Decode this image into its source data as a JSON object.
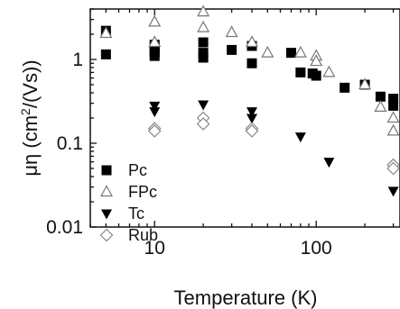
{
  "chart_data": {
    "type": "scatter",
    "title": "",
    "xlabel": "Temperature (K)",
    "ylabel": "μη (cm²/(Vs))",
    "ylabel_parts": {
      "prefix": "μη (cm",
      "exponent": "2",
      "suffix": "/(Vs))"
    },
    "x_scale": "log",
    "y_scale": "log",
    "xlim": [
      4,
      330
    ],
    "ylim": [
      0.01,
      4
    ],
    "x_ticks": [
      10,
      100
    ],
    "x_tick_labels": [
      "10",
      "100"
    ],
    "y_ticks": [
      0.01,
      0.1,
      1
    ],
    "y_tick_labels": [
      "0.01",
      "0.1",
      "1"
    ],
    "grid": false,
    "legend_position": "bottom-left",
    "series": [
      {
        "name": "Pc",
        "marker": "filled-square",
        "color": "#000000",
        "points": [
          {
            "x": 5,
            "y": 2.2
          },
          {
            "x": 5,
            "y": 1.15
          },
          {
            "x": 10,
            "y": 1.5
          },
          {
            "x": 10,
            "y": 1.4
          },
          {
            "x": 10,
            "y": 1.3
          },
          {
            "x": 10,
            "y": 1.2
          },
          {
            "x": 10,
            "y": 1.1
          },
          {
            "x": 20,
            "y": 1.6
          },
          {
            "x": 20,
            "y": 1.2
          },
          {
            "x": 20,
            "y": 1.05
          },
          {
            "x": 30,
            "y": 1.3
          },
          {
            "x": 40,
            "y": 1.45
          },
          {
            "x": 40,
            "y": 0.9
          },
          {
            "x": 70,
            "y": 1.2
          },
          {
            "x": 80,
            "y": 0.7
          },
          {
            "x": 95,
            "y": 0.68
          },
          {
            "x": 100,
            "y": 0.64
          },
          {
            "x": 150,
            "y": 0.46
          },
          {
            "x": 200,
            "y": 0.5
          },
          {
            "x": 250,
            "y": 0.36
          },
          {
            "x": 300,
            "y": 0.34
          },
          {
            "x": 300,
            "y": 0.28
          }
        ]
      },
      {
        "name": "FPc",
        "marker": "open-triangle-up",
        "color": "#777777",
        "points": [
          {
            "x": 5,
            "y": 2.05
          },
          {
            "x": 10,
            "y": 2.8
          },
          {
            "x": 10,
            "y": 1.6
          },
          {
            "x": 20,
            "y": 3.7
          },
          {
            "x": 20,
            "y": 2.4
          },
          {
            "x": 30,
            "y": 2.1
          },
          {
            "x": 40,
            "y": 1.6
          },
          {
            "x": 50,
            "y": 1.2
          },
          {
            "x": 80,
            "y": 1.2
          },
          {
            "x": 100,
            "y": 1.1
          },
          {
            "x": 100,
            "y": 0.95
          },
          {
            "x": 120,
            "y": 0.7
          },
          {
            "x": 200,
            "y": 0.5
          },
          {
            "x": 250,
            "y": 0.27
          },
          {
            "x": 300,
            "y": 0.2
          },
          {
            "x": 300,
            "y": 0.14
          }
        ]
      },
      {
        "name": "Tc",
        "marker": "filled-triangle-down",
        "color": "#000000",
        "points": [
          {
            "x": 10,
            "y": 0.28
          },
          {
            "x": 10,
            "y": 0.24
          },
          {
            "x": 20,
            "y": 0.29
          },
          {
            "x": 40,
            "y": 0.24
          },
          {
            "x": 40,
            "y": 0.2
          },
          {
            "x": 80,
            "y": 0.12
          },
          {
            "x": 120,
            "y": 0.06
          },
          {
            "x": 300,
            "y": 0.027
          }
        ]
      },
      {
        "name": "Rub",
        "marker": "open-diamond",
        "color": "#888888",
        "points": [
          {
            "x": 10,
            "y": 0.15
          },
          {
            "x": 10,
            "y": 0.14
          },
          {
            "x": 20,
            "y": 0.2
          },
          {
            "x": 20,
            "y": 0.17
          },
          {
            "x": 40,
            "y": 0.15
          },
          {
            "x": 40,
            "y": 0.14
          },
          {
            "x": 300,
            "y": 0.055
          },
          {
            "x": 300,
            "y": 0.05
          }
        ]
      }
    ]
  }
}
